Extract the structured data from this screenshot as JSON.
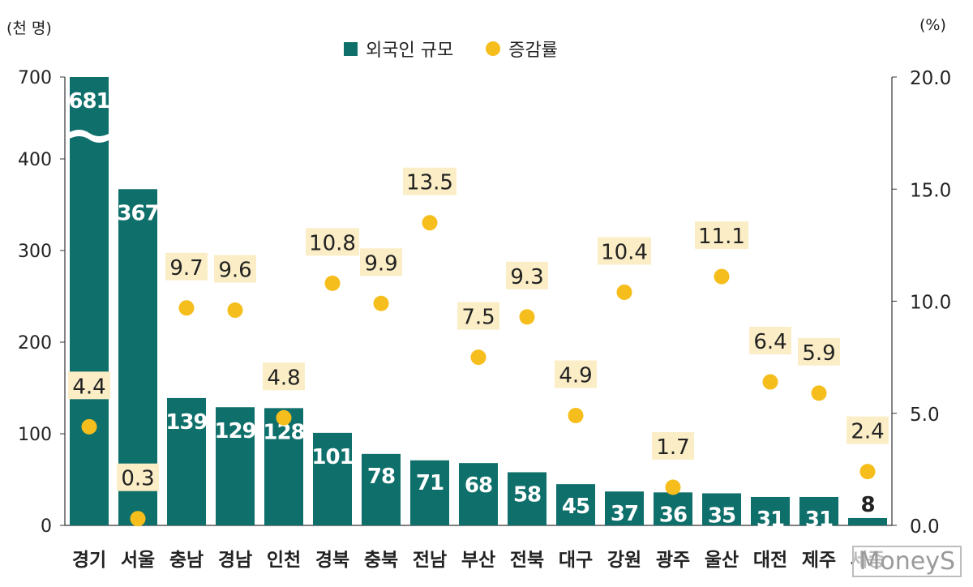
{
  "unit_left": "(천 명)",
  "unit_right": "(%)",
  "legend": {
    "bar_label": "외국인 규모",
    "dot_label": "증감률"
  },
  "watermark": "MoneyS",
  "colors": {
    "bar": "#0f6f6b",
    "dot": "#f5be1c",
    "label_bg": "#fbeec6"
  },
  "chart_data": {
    "type": "bar",
    "categories": [
      "경기",
      "서울",
      "충남",
      "경남",
      "인천",
      "경북",
      "충북",
      "전남",
      "부산",
      "전북",
      "대구",
      "강원",
      "광주",
      "울산",
      "대전",
      "제주",
      "세종"
    ],
    "series": [
      {
        "name": "외국인 규모",
        "axis": "left",
        "values": [
          681,
          367,
          139,
          129,
          128,
          101,
          78,
          71,
          68,
          58,
          45,
          37,
          36,
          35,
          31,
          31,
          8
        ]
      },
      {
        "name": "증감률",
        "axis": "right",
        "type": "scatter",
        "values": [
          4.4,
          0.3,
          9.7,
          9.6,
          4.8,
          10.8,
          9.9,
          13.5,
          7.5,
          9.3,
          4.9,
          10.4,
          1.7,
          11.1,
          6.4,
          5.9,
          2.4
        ]
      }
    ],
    "y_left": {
      "ticks": [
        0,
        100,
        200,
        300,
        400,
        700
      ],
      "broken_axis": true,
      "break_between": [
        400,
        700
      ]
    },
    "y_right": {
      "ticks": [
        "0.0",
        "5.0",
        "10.0",
        "15.0",
        "20.0"
      ],
      "ylim": [
        0,
        20
      ]
    },
    "grid": false,
    "legend_position": "top"
  }
}
